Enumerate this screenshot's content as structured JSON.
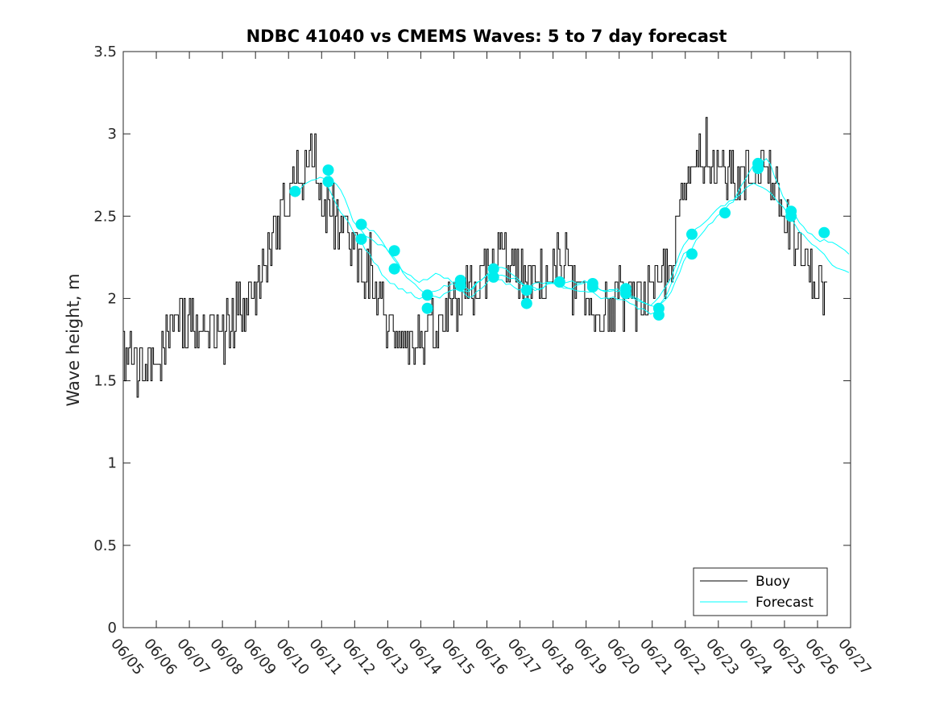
{
  "chart_data": {
    "type": "line",
    "title": "NDBC 41040 vs CMEMS Waves: 5 to 7 day forecast",
    "xlabel": "",
    "ylabel": "Wave height, m",
    "x_unit": "date (MM/DD)",
    "xlim": [
      "06/05",
      "06/27"
    ],
    "xtick_labels": [
      "06/05",
      "06/06",
      "06/07",
      "06/08",
      "06/09",
      "06/10",
      "06/11",
      "06/12",
      "06/13",
      "06/14",
      "06/15",
      "06/16",
      "06/17",
      "06/18",
      "06/19",
      "06/20",
      "06/21",
      "06/22",
      "06/23",
      "06/24",
      "06/25",
      "06/26",
      "06/27"
    ],
    "ylim": [
      0,
      3.5
    ],
    "yticks": [
      0,
      0.5,
      1,
      1.5,
      2,
      2.5,
      3,
      3.5
    ],
    "ytick_labels": [
      "0",
      "0.5",
      "1",
      "1.5",
      "2",
      "2.5",
      "3",
      "3.5"
    ],
    "grid": false,
    "legend_position": "bottom-right",
    "colors": {
      "buoy": "#000000",
      "forecast": "#00ffff",
      "forecast_marker": "#00eeee"
    },
    "series": [
      {
        "name": "Buoy",
        "style": "line",
        "x_day_of_june": [
          5.0,
          5.5,
          6.0,
          6.5,
          7.0,
          7.5,
          8.0,
          8.5,
          9.0,
          9.5,
          10.0,
          10.5,
          10.8,
          11.0,
          11.5,
          12.0,
          12.5,
          13.0,
          13.5,
          13.8,
          14.0,
          14.5,
          15.0,
          15.5,
          16.0,
          16.5,
          17.0,
          17.5,
          18.0,
          18.5,
          19.0,
          19.5,
          20.0,
          20.5,
          21.0,
          21.5,
          22.0,
          22.3,
          22.7,
          23.0,
          23.5,
          24.0,
          24.3,
          24.6,
          25.0,
          25.5,
          26.0,
          26.3
        ],
        "y": [
          1.6,
          1.55,
          1.6,
          1.85,
          1.85,
          1.85,
          1.75,
          1.95,
          2.05,
          2.35,
          2.65,
          2.8,
          2.95,
          2.6,
          2.45,
          2.3,
          2.1,
          1.85,
          1.8,
          1.7,
          1.75,
          1.8,
          1.9,
          2.05,
          2.15,
          2.3,
          2.1,
          2.1,
          2.15,
          2.1,
          1.95,
          1.9,
          1.95,
          2.0,
          2.0,
          2.2,
          2.65,
          2.8,
          2.85,
          2.8,
          2.7,
          2.75,
          2.85,
          2.75,
          2.45,
          2.25,
          2.1,
          2.05
        ]
      },
      {
        "name": "Forecast",
        "style": "line",
        "segments": [
          {
            "x_day_of_june": [
              10.2,
              10.6,
              11.0,
              11.5,
              12.0,
              12.5,
              13.0,
              13.5,
              14.0,
              14.5,
              15.0,
              15.5,
              16.0,
              16.5,
              17.0,
              17.5,
              18.0,
              18.5,
              19.0,
              19.5,
              20.0,
              20.5,
              21.0,
              21.5,
              22.0,
              22.3
            ],
            "y": [
              2.65,
              2.7,
              2.75,
              2.55,
              2.4,
              2.25,
              2.1,
              2.05,
              2.0,
              2.05,
              2.1,
              2.0,
              2.1,
              2.15,
              2.1,
              2.05,
              2.1,
              2.05,
              2.05,
              2.0,
              2.0,
              1.95,
              1.9,
              2.05,
              2.3,
              2.25
            ]
          },
          {
            "x_day_of_june": [
              11.2,
              11.6,
              12.0,
              12.5,
              13.0,
              13.5,
              14.0,
              14.5,
              15.0,
              15.5,
              16.0,
              16.5,
              17.0,
              17.5,
              18.0,
              18.5,
              19.0,
              19.5,
              20.0,
              20.5,
              21.0,
              21.5,
              22.0,
              22.5,
              23.0,
              23.5,
              24.0,
              24.5,
              25.0,
              25.5,
              26.0,
              26.5,
              27.0
            ],
            "y": [
              2.75,
              2.65,
              2.45,
              2.35,
              2.3,
              2.15,
              2.1,
              2.15,
              2.1,
              2.05,
              2.15,
              2.2,
              2.1,
              2.05,
              2.1,
              2.1,
              2.1,
              2.05,
              2.05,
              2.0,
              1.95,
              2.1,
              2.35,
              2.45,
              2.55,
              2.6,
              2.7,
              2.65,
              2.55,
              2.4,
              2.3,
              2.2,
              2.15
            ]
          },
          {
            "x_day_of_june": [
              12.2,
              12.6,
              13.0,
              13.5,
              14.0,
              14.5,
              15.0,
              15.5,
              16.0,
              16.5,
              17.0,
              17.5,
              18.0,
              18.5,
              19.0,
              19.5,
              20.0,
              20.5,
              21.0,
              21.5,
              22.0,
              22.5,
              23.0,
              23.5,
              24.0,
              24.5,
              25.0,
              25.5,
              26.0,
              26.5,
              27.0
            ],
            "y": [
              2.45,
              2.4,
              2.3,
              2.15,
              2.05,
              2.0,
              2.05,
              2.05,
              2.15,
              2.1,
              2.05,
              2.1,
              2.1,
              2.05,
              2.1,
              2.05,
              2.05,
              2.0,
              1.95,
              2.0,
              2.25,
              2.4,
              2.5,
              2.6,
              2.8,
              2.85,
              2.6,
              2.45,
              2.35,
              2.35,
              2.25
            ]
          }
        ],
        "markers_x_day_of_june": [
          10.2,
          11.2,
          11.2,
          12.2,
          12.2,
          13.2,
          13.2,
          14.2,
          14.2,
          15.2,
          15.2,
          16.2,
          16.2,
          17.2,
          17.2,
          18.2,
          19.2,
          19.2,
          20.2,
          20.2,
          21.2,
          21.2,
          22.2,
          22.2,
          23.2,
          24.2,
          24.2,
          25.2,
          25.2,
          26.2
        ],
        "markers_y": [
          2.65,
          2.78,
          2.71,
          2.45,
          2.36,
          2.29,
          2.18,
          2.02,
          1.94,
          2.11,
          2.08,
          2.18,
          2.13,
          2.05,
          1.97,
          2.1,
          2.09,
          2.07,
          2.06,
          2.03,
          1.94,
          1.9,
          2.39,
          2.27,
          2.52,
          2.82,
          2.79,
          2.53,
          2.5,
          2.4
        ]
      }
    ]
  }
}
